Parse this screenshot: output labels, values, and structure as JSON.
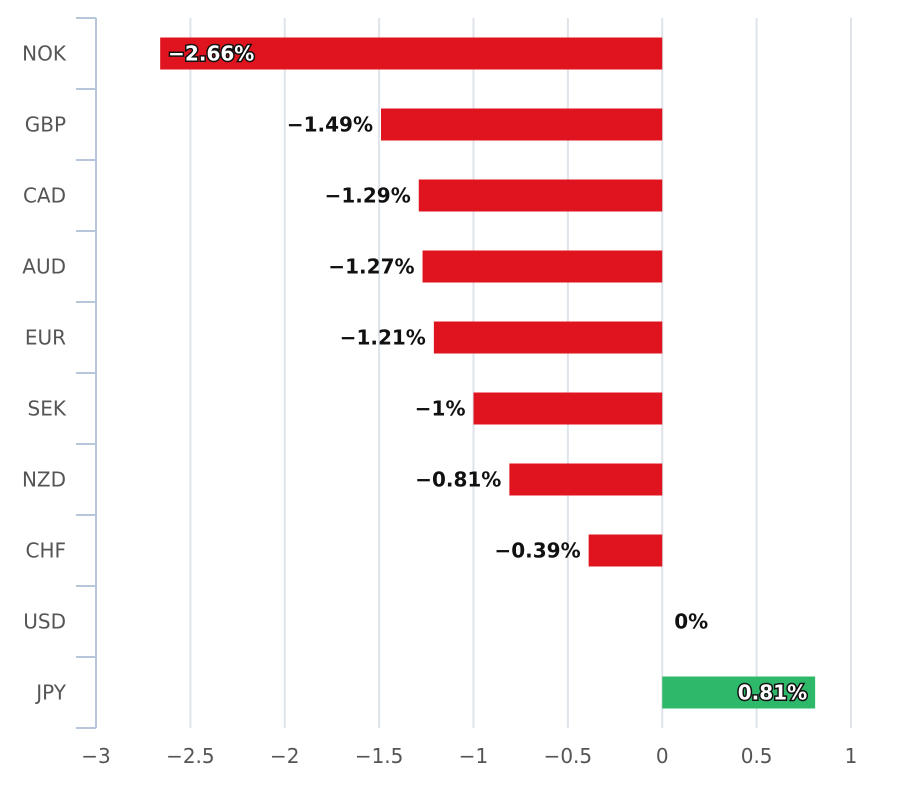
{
  "chart_data": {
    "type": "bar",
    "orientation": "horizontal",
    "title": "",
    "xlabel": "",
    "ylabel": "",
    "xlim": [
      -3,
      1
    ],
    "grid": true,
    "legend": "none",
    "categories": [
      "NOK",
      "GBP",
      "CAD",
      "AUD",
      "EUR",
      "SEK",
      "NZD",
      "CHF",
      "USD",
      "JPY"
    ],
    "values": [
      -2.66,
      -1.49,
      -1.29,
      -1.27,
      -1.21,
      -1,
      -0.81,
      -0.39,
      0,
      0.81
    ],
    "data_labels": [
      "−2.66%",
      "−1.49%",
      "−1.29%",
      "−1.27%",
      "−1.21%",
      "−1%",
      "−0.81%",
      "−0.39%",
      "0%",
      "0.81%"
    ],
    "x_ticks": [
      -3,
      -2.5,
      -2,
      -1.5,
      -1,
      -0.5,
      0,
      0.5,
      1
    ],
    "x_tick_labels": [
      "−3",
      "−2.5",
      "−2",
      "−1.5",
      "−1",
      "−0.5",
      "0",
      "0.5",
      "1"
    ],
    "colors": {
      "negative": "#e0141e",
      "positive": "#2db86a",
      "grid": "#dfe3ea",
      "axis": "#b8c6dc"
    }
  }
}
